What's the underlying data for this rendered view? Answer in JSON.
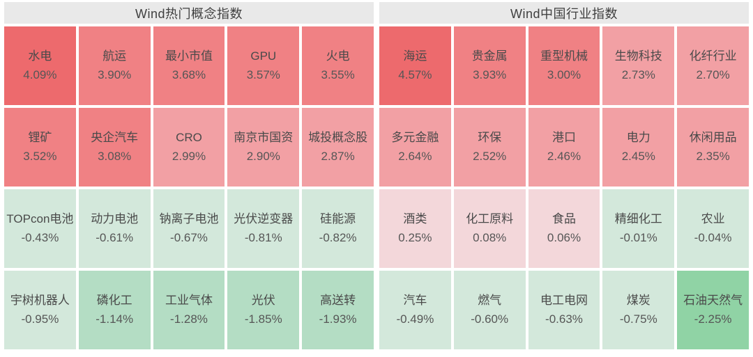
{
  "palette": {
    "header_bg": "#e9e9e9",
    "header_text": "#3f3f3f",
    "cell_name_text": "#4a4a4a",
    "cell_pct_text": "#565656",
    "levels": [
      {
        "min": 4.0,
        "color": "#ed6a6d"
      },
      {
        "min": 3.0,
        "color": "#f08184"
      },
      {
        "min": 2.0,
        "color": "#f2a0a4"
      },
      {
        "min": 0.0,
        "color": "#f3d7da"
      },
      {
        "min": -1.0,
        "color": "#d3e8db"
      },
      {
        "min": -2.0,
        "color": "#b4ddc4"
      },
      {
        "min": -999,
        "color": "#90d3a5"
      }
    ]
  },
  "chart_data": [
    {
      "type": "heatmap",
      "title": "Wind热门概念指数",
      "rows": [
        [
          {
            "name": "水电",
            "value": 4.09,
            "label": "4.09%"
          },
          {
            "name": "航运",
            "value": 3.9,
            "label": "3.90%"
          },
          {
            "name": "最小市值",
            "value": 3.68,
            "label": "3.68%"
          },
          {
            "name": "GPU",
            "value": 3.57,
            "label": "3.57%"
          },
          {
            "name": "火电",
            "value": 3.55,
            "label": "3.55%"
          }
        ],
        [
          {
            "name": "锂矿",
            "value": 3.52,
            "label": "3.52%"
          },
          {
            "name": "央企汽车",
            "value": 3.08,
            "label": "3.08%"
          },
          {
            "name": "CRO",
            "value": 2.99,
            "label": "2.99%"
          },
          {
            "name": "南京市国资",
            "value": 2.9,
            "label": "2.90%"
          },
          {
            "name": "城投概念股",
            "value": 2.87,
            "label": "2.87%"
          }
        ],
        [
          {
            "name": "TOPcon电池",
            "value": -0.43,
            "label": "-0.43%"
          },
          {
            "name": "动力电池",
            "value": -0.61,
            "label": "-0.61%"
          },
          {
            "name": "钠离子电池",
            "value": -0.67,
            "label": "-0.67%"
          },
          {
            "name": "光伏逆变器",
            "value": -0.81,
            "label": "-0.81%"
          },
          {
            "name": "硅能源",
            "value": -0.82,
            "label": "-0.82%"
          }
        ],
        [
          {
            "name": "宇树机器人",
            "value": -0.95,
            "label": "-0.95%"
          },
          {
            "name": "磷化工",
            "value": -1.14,
            "label": "-1.14%"
          },
          {
            "name": "工业气体",
            "value": -1.28,
            "label": "-1.28%"
          },
          {
            "name": "光伏",
            "value": -1.85,
            "label": "-1.85%"
          },
          {
            "name": "高送转",
            "value": -1.93,
            "label": "-1.93%"
          }
        ]
      ]
    },
    {
      "type": "heatmap",
      "title": "Wind中国行业指数",
      "rows": [
        [
          {
            "name": "海运",
            "value": 4.57,
            "label": "4.57%"
          },
          {
            "name": "贵金属",
            "value": 3.93,
            "label": "3.93%"
          },
          {
            "name": "重型机械",
            "value": 3.0,
            "label": "3.00%"
          },
          {
            "name": "生物科技",
            "value": 2.73,
            "label": "2.73%"
          },
          {
            "name": "化纤行业",
            "value": 2.7,
            "label": "2.70%"
          }
        ],
        [
          {
            "name": "多元金融",
            "value": 2.64,
            "label": "2.64%"
          },
          {
            "name": "环保",
            "value": 2.52,
            "label": "2.52%"
          },
          {
            "name": "港口",
            "value": 2.46,
            "label": "2.46%"
          },
          {
            "name": "电力",
            "value": 2.45,
            "label": "2.45%"
          },
          {
            "name": "休闲用品",
            "value": 2.35,
            "label": "2.35%"
          }
        ],
        [
          {
            "name": "酒类",
            "value": 0.25,
            "label": "0.25%"
          },
          {
            "name": "化工原料",
            "value": 0.08,
            "label": "0.08%"
          },
          {
            "name": "食品",
            "value": 0.06,
            "label": "0.06%"
          },
          {
            "name": "精细化工",
            "value": -0.01,
            "label": "-0.01%"
          },
          {
            "name": "农业",
            "value": -0.04,
            "label": "-0.04%"
          }
        ],
        [
          {
            "name": "汽车",
            "value": -0.49,
            "label": "-0.49%"
          },
          {
            "name": "燃气",
            "value": -0.6,
            "label": "-0.60%"
          },
          {
            "name": "电工电网",
            "value": -0.63,
            "label": "-0.63%"
          },
          {
            "name": "煤炭",
            "value": -0.75,
            "label": "-0.75%"
          },
          {
            "name": "石油天然气",
            "value": -2.25,
            "label": "-2.25%"
          }
        ]
      ]
    }
  ]
}
